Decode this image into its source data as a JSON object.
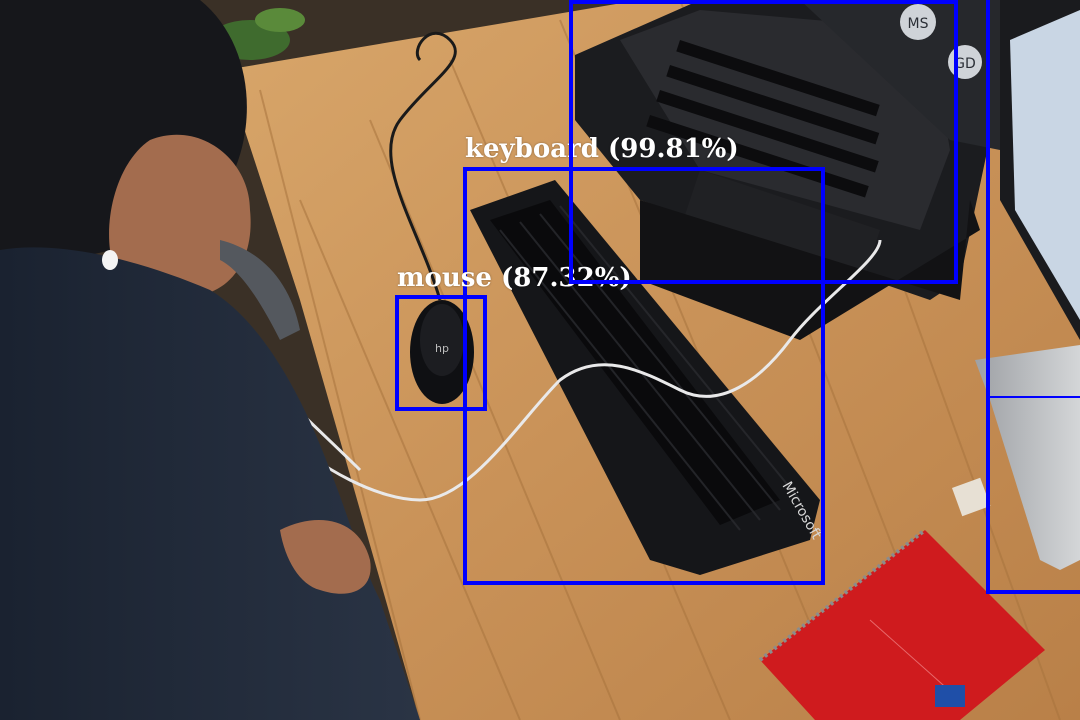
{
  "image": {
    "description": "",
    "colors": {
      "desk": "#c9965b",
      "desk_dark": "#a9753e",
      "keyboard": "#151619",
      "mouse": "#0f1013",
      "notebook": "#cf1b1e",
      "sweater": "#1f2836",
      "skin": "#a36c4e",
      "hair": "#16171b",
      "laptop": "#1a1b1e",
      "monitor_stand": "#b8babd",
      "cable": "#e9e9ea",
      "box": "#0000ff"
    }
  },
  "detections": [
    {
      "label": "keyboard (99.81%)",
      "color": "#0000ff"
    },
    {
      "label": "mouse (87.32%)",
      "color": "#0000ff"
    },
    {
      "label": "",
      "color": "#0000ff"
    },
    {
      "label": "",
      "color": "#0000ff"
    }
  ],
  "laptop_avatars": [
    "MS",
    "GD"
  ],
  "keyboard_brand": "Microsoft",
  "mouse_brand": "hp"
}
